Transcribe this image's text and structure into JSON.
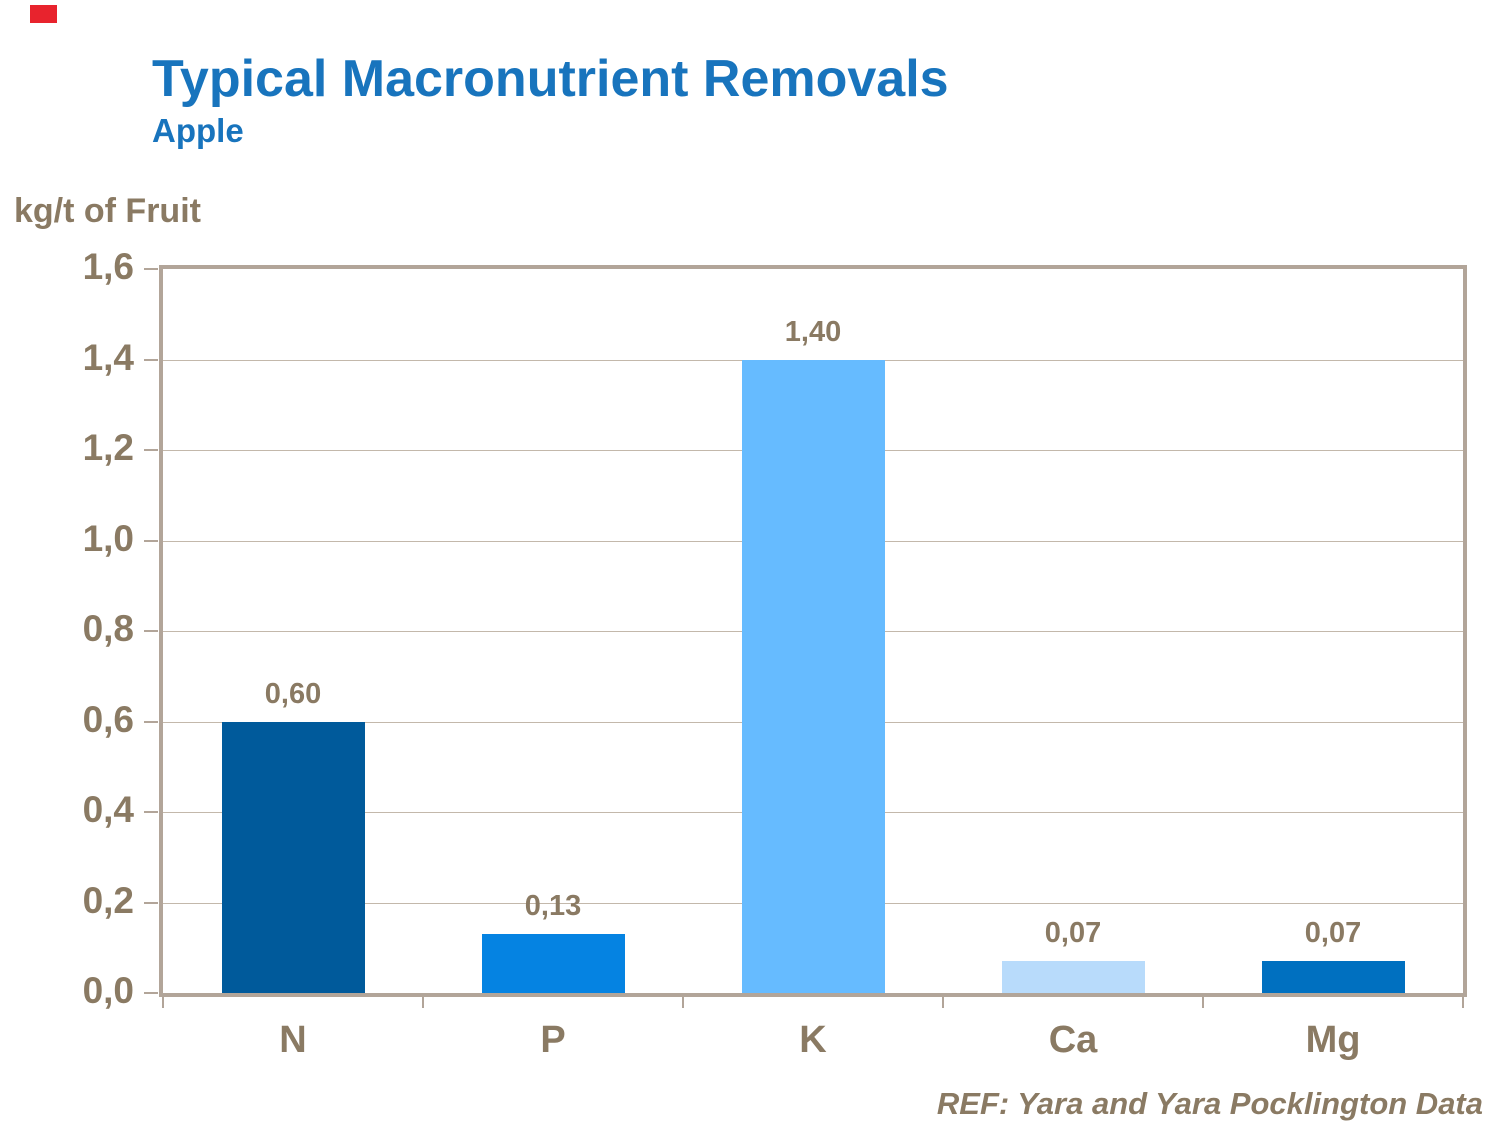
{
  "header": {
    "title": "Typical Macronutrient Removals",
    "subtitle": "Apple",
    "title_color": "#1874bd"
  },
  "decor": {
    "red_mark_color": "#e8232d"
  },
  "chart_data": {
    "type": "bar",
    "title": "Typical Macronutrient Removals",
    "subtitle": "Apple",
    "ylabel": "kg/t of Fruit",
    "xlabel": "",
    "ylim": [
      0,
      1.6
    ],
    "grid": true,
    "legend": "none",
    "categories": [
      "N",
      "P",
      "K",
      "Ca",
      "Mg"
    ],
    "values": [
      0.6,
      0.13,
      1.4,
      0.07,
      0.07
    ],
    "value_labels": [
      "0,60",
      "0,13",
      "1,40",
      "0,07",
      "0,07"
    ],
    "bar_colors": [
      "#005a9b",
      "#0583e2",
      "#66bbff",
      "#b8dbfb",
      "#0070c0"
    ],
    "ytick_values": [
      0,
      0.2,
      0.4,
      0.6,
      0.8,
      1.0,
      1.2,
      1.4,
      1.6
    ],
    "ytick_labels": [
      "0,0",
      "0,2",
      "0,4",
      "0,6",
      "0,8",
      "1,0",
      "1,2",
      "1,4",
      "1,6"
    ],
    "text_color": "#8a7a63",
    "axis_color": "#b2a599",
    "grid_color": "#c3b8ab"
  },
  "footer": {
    "ref_text": "REF: Yara and Yara Pocklington Data"
  }
}
